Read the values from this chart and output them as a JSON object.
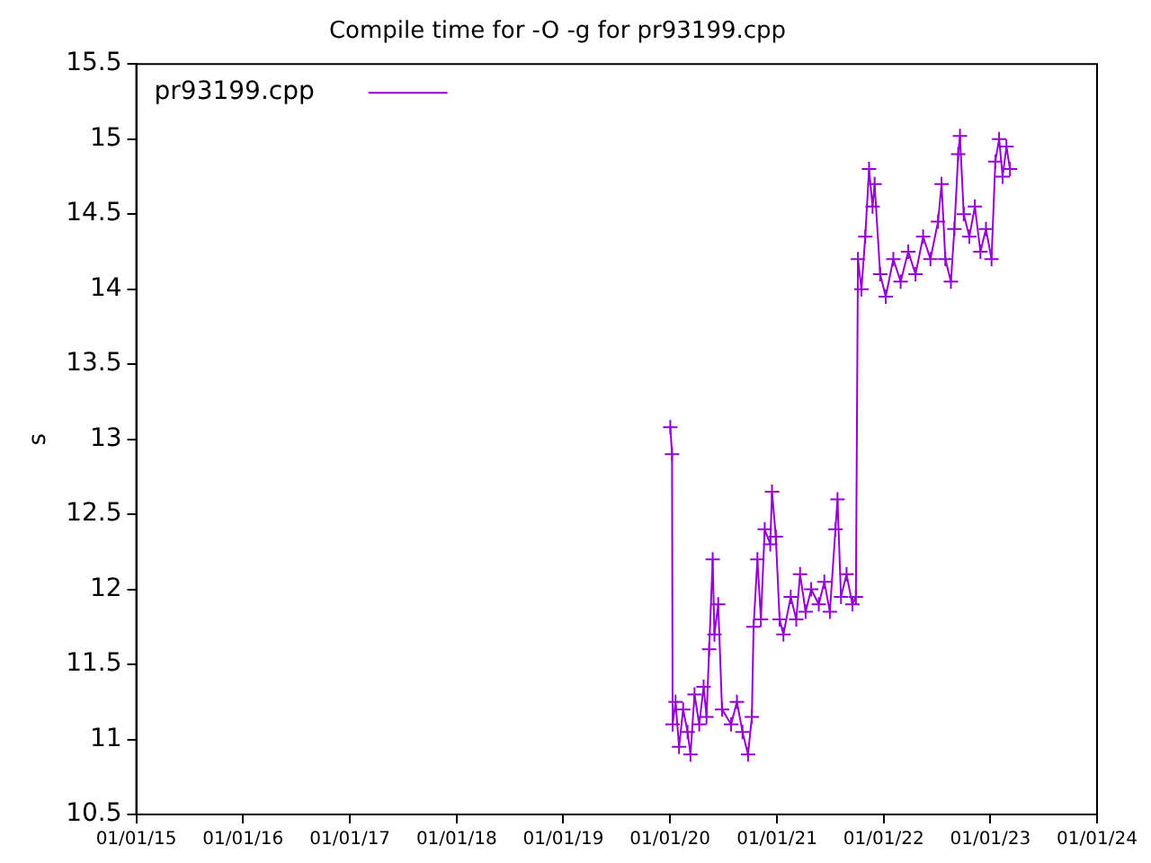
{
  "chart_data": {
    "type": "line",
    "title": "Compile time for -O -g for pr93199.cpp",
    "ylabel": "s",
    "xlim": [
      "2015-01-01",
      "2024-01-01"
    ],
    "xticks": [
      {
        "value": "2015-01-01",
        "label": "01/01/15"
      },
      {
        "value": "2016-01-01",
        "label": "01/01/16"
      },
      {
        "value": "2017-01-01",
        "label": "01/01/17"
      },
      {
        "value": "2018-01-01",
        "label": "01/01/18"
      },
      {
        "value": "2019-01-01",
        "label": "01/01/19"
      },
      {
        "value": "2020-01-01",
        "label": "01/01/20"
      },
      {
        "value": "2021-01-01",
        "label": "01/01/21"
      },
      {
        "value": "2022-01-01",
        "label": "01/01/22"
      },
      {
        "value": "2023-01-01",
        "label": "01/01/23"
      },
      {
        "value": "2024-01-01",
        "label": "01/01/24"
      }
    ],
    "ylim": [
      10.5,
      15.5
    ],
    "yticks": [
      10.5,
      11,
      11.5,
      12,
      12.5,
      13,
      13.5,
      14,
      14.5,
      15,
      15.5
    ],
    "grid": false,
    "legend": "top left",
    "marker": "cross",
    "line_style": "solid",
    "series": [
      {
        "name": "pr93199.cpp",
        "color": "#9400d3",
        "x": [
          "2020-01-02",
          "2020-01-08",
          "2020-01-10",
          "2020-01-20",
          "2020-02-01",
          "2020-02-15",
          "2020-03-01",
          "2020-03-11",
          "2020-03-25",
          "2020-04-10",
          "2020-04-25",
          "2020-05-05",
          "2020-05-14",
          "2020-05-26",
          "2020-06-01",
          "2020-06-14",
          "2020-06-27",
          "2020-07-28",
          "2020-08-17",
          "2020-09-05",
          "2020-09-24",
          "2020-10-07",
          "2020-10-13",
          "2020-10-26",
          "2020-11-07",
          "2020-11-20",
          "2020-12-09",
          "2020-12-15",
          "2020-12-28",
          "2021-01-10",
          "2021-01-23",
          "2021-02-17",
          "2021-03-08",
          "2021-03-21",
          "2021-04-09",
          "2021-04-28",
          "2021-05-24",
          "2021-06-12",
          "2021-07-01",
          "2021-07-20",
          "2021-07-27",
          "2021-08-08",
          "2021-08-27",
          "2021-09-16",
          "2021-09-28",
          "2021-10-05",
          "2021-10-17",
          "2021-10-30",
          "2021-11-12",
          "2021-11-24",
          "2021-12-01",
          "2021-12-20",
          "2022-01-08",
          "2022-02-03",
          "2022-02-28",
          "2022-03-26",
          "2022-04-20",
          "2022-05-16",
          "2022-06-10",
          "2022-07-06",
          "2022-07-18",
          "2022-07-31",
          "2022-08-19",
          "2022-08-31",
          "2022-09-13",
          "2022-09-19",
          "2022-10-02",
          "2022-10-21",
          "2022-11-09",
          "2022-11-28",
          "2022-12-17",
          "2023-01-05",
          "2023-01-18",
          "2023-01-31",
          "2023-02-12",
          "2023-02-25",
          "2023-03-09"
        ],
        "values": [
          13.08,
          12.9,
          11.1,
          11.25,
          10.95,
          11.2,
          11.05,
          10.9,
          11.3,
          11.1,
          11.35,
          11.15,
          11.6,
          12.2,
          11.7,
          11.9,
          11.2,
          11.1,
          11.25,
          11.05,
          10.9,
          11.15,
          11.75,
          12.2,
          11.8,
          12.4,
          12.3,
          12.65,
          12.35,
          11.8,
          11.7,
          11.95,
          11.8,
          12.1,
          11.85,
          12.0,
          11.9,
          12.05,
          11.85,
          12.4,
          12.6,
          11.95,
          12.1,
          11.9,
          11.95,
          14.2,
          14.0,
          14.35,
          14.8,
          14.55,
          14.7,
          14.1,
          13.95,
          14.2,
          14.05,
          14.25,
          14.1,
          14.35,
          14.2,
          14.45,
          14.7,
          14.2,
          14.05,
          14.4,
          14.9,
          15.02,
          14.5,
          14.35,
          14.55,
          14.25,
          14.4,
          14.2,
          14.85,
          15.0,
          14.75,
          14.95,
          14.8
        ]
      }
    ]
  }
}
